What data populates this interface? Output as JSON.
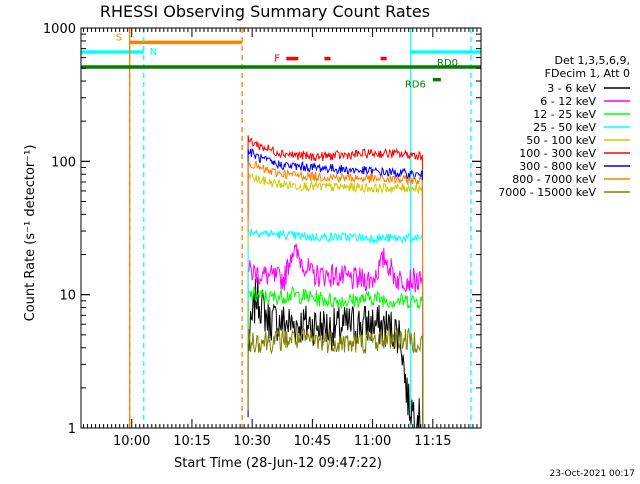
{
  "chart_data": {
    "type": "line",
    "title": "RHESSI Observing Summary Count Rates",
    "xlabel": "Start Time (28-Jun-12 09:47:22)",
    "ylabel": "Count Rate (s⁻¹ detector⁻¹)",
    "x_scale": "time",
    "y_scale": "log",
    "xlim": [
      "09:47:22",
      "11:27:00"
    ],
    "ylim": [
      1,
      1000
    ],
    "x_ticks": [
      "10:00",
      "10:15",
      "10:30",
      "10:45",
      "11:00",
      "11:15"
    ],
    "y_ticks": [
      {
        "value": 1,
        "label": "1"
      },
      {
        "value": 10,
        "label": "10"
      },
      {
        "value": 100,
        "label": "100"
      },
      {
        "value": 1000,
        "label": "1000"
      }
    ],
    "legend": {
      "placement": "right",
      "header": [
        "Det 1,3,5,6,9,",
        "FDecim 1, Att 0"
      ]
    },
    "series": [
      {
        "name": "3 - 6 keV",
        "color": "#000000",
        "start": "10:29",
        "end": "11:12:30",
        "points": [
          [
            "10:29",
            4
          ],
          [
            "10:31",
            10
          ],
          [
            "10:34",
            6.5
          ],
          [
            "10:40",
            6
          ],
          [
            "10:45",
            6
          ],
          [
            "10:50",
            5.5
          ],
          [
            "10:55",
            6
          ],
          [
            "11:00",
            6
          ],
          [
            "11:05",
            5.5
          ],
          [
            "11:07",
            5
          ],
          [
            "11:08",
            2.5
          ],
          [
            "11:09",
            1.5
          ],
          [
            "11:11",
            1.3
          ],
          [
            "11:12:30",
            1
          ]
        ]
      },
      {
        "name": "6 - 12 keV",
        "color": "#ff00ff",
        "start": "10:29",
        "end": "11:12:30",
        "points": [
          [
            "10:29",
            15
          ],
          [
            "10:33",
            14
          ],
          [
            "10:38",
            13
          ],
          [
            "10:40",
            22
          ],
          [
            "10:45",
            14
          ],
          [
            "10:50",
            14
          ],
          [
            "10:55",
            13
          ],
          [
            "11:00",
            13
          ],
          [
            "11:03",
            19
          ],
          [
            "11:06",
            13
          ],
          [
            "11:10",
            13
          ],
          [
            "11:12:30",
            12
          ]
        ]
      },
      {
        "name": "12 - 25 keV",
        "color": "#00ff00",
        "start": "10:29",
        "end": "11:12:30",
        "points": [
          [
            "10:29",
            10
          ],
          [
            "10:35",
            9.5
          ],
          [
            "10:40",
            10
          ],
          [
            "10:45",
            9.5
          ],
          [
            "10:50",
            9
          ],
          [
            "10:55",
            9
          ],
          [
            "11:00",
            9.5
          ],
          [
            "11:05",
            9
          ],
          [
            "11:10",
            9
          ],
          [
            "11:12:30",
            9
          ]
        ]
      },
      {
        "name": "25 - 50 keV",
        "color": "#00ffff",
        "start": "10:29",
        "end": "11:12:30",
        "points": [
          [
            "10:29",
            30
          ],
          [
            "10:33",
            29
          ],
          [
            "10:38",
            28
          ],
          [
            "10:45",
            27
          ],
          [
            "10:50",
            27
          ],
          [
            "10:55",
            27
          ],
          [
            "11:00",
            26.5
          ],
          [
            "11:05",
            26.5
          ],
          [
            "11:10",
            26.5
          ],
          [
            "11:12:30",
            26.5
          ]
        ]
      },
      {
        "name": "50 - 100 keV",
        "color": "#cccc00",
        "start": "10:29",
        "end": "11:12:30",
        "points": [
          [
            "10:29",
            78
          ],
          [
            "10:32",
            72
          ],
          [
            "10:36",
            68
          ],
          [
            "10:40",
            66
          ],
          [
            "10:45",
            65
          ],
          [
            "10:50",
            64
          ],
          [
            "10:55",
            64
          ],
          [
            "11:00",
            63
          ],
          [
            "11:05",
            63
          ],
          [
            "11:10",
            63
          ],
          [
            "11:12:30",
            63
          ]
        ]
      },
      {
        "name": "100 - 300 keV",
        "color": "#ff0000",
        "start": "10:29",
        "end": "11:12:30",
        "points": [
          [
            "10:29",
            145
          ],
          [
            "10:32",
            130
          ],
          [
            "10:36",
            118
          ],
          [
            "10:40",
            112
          ],
          [
            "10:45",
            108
          ],
          [
            "10:50",
            110
          ],
          [
            "10:55",
            112
          ],
          [
            "11:00",
            115
          ],
          [
            "11:05",
            114
          ],
          [
            "11:10",
            112
          ],
          [
            "11:12:30",
            110
          ]
        ]
      },
      {
        "name": "300 - 800 keV",
        "color": "#0000ff",
        "start": "10:29",
        "end": "11:12:30",
        "points": [
          [
            "10:29",
            120
          ],
          [
            "10:32",
            105
          ],
          [
            "10:36",
            95
          ],
          [
            "10:40",
            92
          ],
          [
            "10:45",
            90
          ],
          [
            "10:50",
            88
          ],
          [
            "10:55",
            86
          ],
          [
            "11:00",
            84
          ],
          [
            "11:05",
            82
          ],
          [
            "11:10",
            80
          ],
          [
            "11:12:30",
            78
          ]
        ]
      },
      {
        "name": "800 - 7000 keV",
        "color": "#ff8000",
        "start": "10:29",
        "end": "11:12:30",
        "points": [
          [
            "10:29",
            100
          ],
          [
            "10:32",
            88
          ],
          [
            "10:36",
            82
          ],
          [
            "10:40",
            79
          ],
          [
            "10:45",
            77
          ],
          [
            "10:50",
            76
          ],
          [
            "10:55",
            75
          ],
          [
            "11:00",
            74
          ],
          [
            "11:05",
            73
          ],
          [
            "11:10",
            72
          ],
          [
            "11:12:30",
            72
          ]
        ]
      },
      {
        "name": "7000 - 15000 keV",
        "color": "#808000",
        "start": "10:29",
        "end": "11:12:30",
        "points": [
          [
            "10:29",
            4.5
          ],
          [
            "10:35",
            4.5
          ],
          [
            "10:40",
            4.7
          ],
          [
            "10:45",
            4.5
          ],
          [
            "10:50",
            4.5
          ],
          [
            "10:55",
            4.3
          ],
          [
            "11:00",
            4.5
          ],
          [
            "11:05",
            4.8
          ],
          [
            "11:10",
            4.5
          ],
          [
            "11:12:30",
            4.5
          ]
        ]
      }
    ],
    "markers": [
      {
        "label": "S",
        "color": "#ff8000",
        "style": "dashed",
        "x_lines": [
          "09:59:30",
          "10:27:30"
        ],
        "bar": [
          "09:59:30",
          "10:27:30"
        ],
        "bar_level": 780
      },
      {
        "label": "N",
        "color": "#00ffff",
        "style": "dashed",
        "x_lines": [
          "10:03",
          "11:24:30"
        ],
        "bar": [
          "09:47:22",
          "10:03"
        ],
        "bar_level": 660
      },
      {
        "label": "",
        "color": "#ff8000",
        "style": "solid",
        "x_lines": [
          "09:59:30"
        ],
        "bar": null
      },
      {
        "label": "",
        "color": "#00ffff",
        "style": "solid",
        "x_lines": [
          "11:09:30"
        ],
        "bar": [
          "11:09:30",
          "11:27:00"
        ],
        "bar_level": 660
      },
      {
        "label": "RD0",
        "color": "#008000",
        "style": "solid",
        "x_lines": [],
        "bar": [
          "09:47:22",
          "11:27:00"
        ],
        "bar_level": 510
      },
      {
        "label": "RD6",
        "color": "#008000",
        "style": "solid",
        "x_lines": [],
        "bar": [
          "11:15",
          "11:17"
        ],
        "bar_level": 410
      },
      {
        "label": "F",
        "color": "#ff0000",
        "style": "solid",
        "x_lines": [],
        "bars": [
          [
            "10:38:30",
            "10:41:30"
          ],
          [
            "10:48",
            "10:49:30"
          ],
          [
            "11:02",
            "11:03:30"
          ]
        ],
        "bar_level": 590
      }
    ],
    "footer_text": "23-Oct-2021 00:17"
  }
}
